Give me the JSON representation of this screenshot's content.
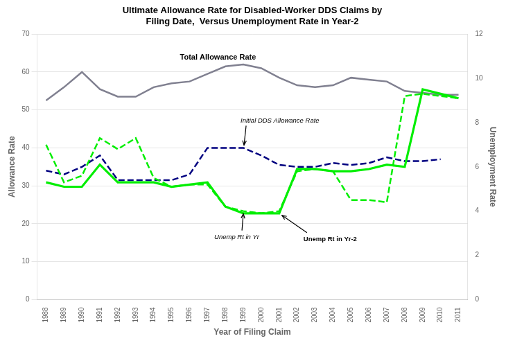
{
  "chart_data": {
    "type": "line",
    "title": "Ultimate Allowance Rate for Disabled-Worker DDS Claims by\nFiling Date,  Versus Unemployment Rate in Year-2",
    "xlabel": "Year of Filing Claim",
    "ylabel": "Allowance Rate",
    "y2label": "Unemployment Rate",
    "x": [
      1988,
      1989,
      1990,
      1991,
      1992,
      1993,
      1994,
      1995,
      1996,
      1997,
      1998,
      1999,
      2000,
      2001,
      2002,
      2003,
      2004,
      2005,
      2006,
      2007,
      2008,
      2009,
      2010,
      2011
    ],
    "xlim": [
      1987.5,
      2011.5
    ],
    "xticks": [
      1988,
      1989,
      1990,
      1991,
      1992,
      1993,
      1994,
      1995,
      1996,
      1997,
      1998,
      1999,
      2000,
      2001,
      2002,
      2003,
      2004,
      2005,
      2006,
      2007,
      2008,
      2009,
      2010,
      2011
    ],
    "ylim": [
      0,
      70
    ],
    "yticks": [
      0,
      10,
      20,
      30,
      40,
      50,
      60,
      70
    ],
    "y2lim": [
      0,
      12
    ],
    "y2ticks": [
      0,
      2,
      4,
      6,
      8,
      10,
      12
    ],
    "grid": "y",
    "series": [
      {
        "name": "Total Allowance Rate",
        "color": "#808090",
        "line_style": "solid",
        "values": [
          52.5,
          56.0,
          60.0,
          55.5,
          53.5,
          53.5,
          56.0,
          57.0,
          57.5,
          59.5,
          61.5,
          62.0,
          61.0,
          58.5,
          56.5,
          56.0,
          56.5,
          58.5,
          58.0,
          57.5,
          55.0,
          54.5,
          54.0,
          54.0
        ]
      },
      {
        "name": "Initial DDS Allowance Rate",
        "color": "#000080",
        "line_style": "dashed",
        "values": [
          34.0,
          33.0,
          35.0,
          38.0,
          31.5,
          31.5,
          31.5,
          31.5,
          33.0,
          40.0,
          40.0,
          40.0,
          38.0,
          35.5,
          35.0,
          35.0,
          36.0,
          35.5,
          36.0,
          37.5,
          36.5,
          36.5,
          37.0,
          null
        ]
      },
      {
        "name": "Unemp Rt in Yr",
        "color": "#00ee00",
        "line_style": "dashed",
        "axis": "y2",
        "values": [
          7.0,
          5.3,
          5.6,
          7.3,
          6.8,
          7.3,
          5.5,
          5.1,
          5.2,
          5.2,
          4.2,
          4.0,
          3.9,
          4.0,
          5.8,
          5.9,
          5.8,
          4.5,
          4.5,
          4.4,
          9.2,
          9.3,
          9.2,
          9.1
        ]
      },
      {
        "name": "Unemp Rt in Yr-2",
        "color": "#00ee00",
        "line_style": "solid",
        "axis": "y2",
        "values": [
          5.3,
          5.1,
          5.1,
          6.1,
          5.3,
          5.3,
          5.3,
          5.1,
          5.2,
          5.3,
          4.2,
          3.9,
          3.9,
          3.9,
          5.9,
          5.9,
          5.8,
          5.8,
          5.9,
          6.1,
          6.0,
          9.5,
          9.3,
          9.1
        ]
      }
    ]
  }
}
